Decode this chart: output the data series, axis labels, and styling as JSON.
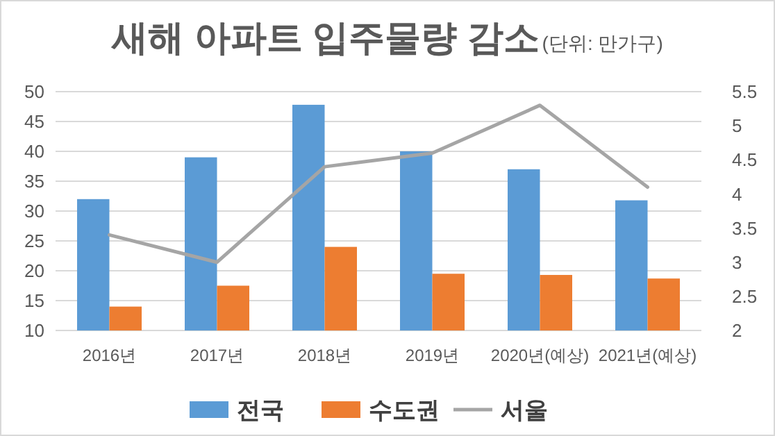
{
  "chart_data": {
    "type": "bar",
    "title": "새해 아파트 입주물량 감소",
    "subtitle": "(단위: 만가구)",
    "categories": [
      "2016년",
      "2017년",
      "2018년",
      "2019년",
      "2020년(예상)",
      "2021년(예상)"
    ],
    "series": [
      {
        "name": "전국",
        "color": "#5b9bd5",
        "values": [
          32,
          39,
          47.8,
          40,
          37,
          31.8
        ]
      },
      {
        "name": "수도권",
        "color": "#ed7d31",
        "values": [
          14,
          17.5,
          24,
          19.5,
          19.3,
          18.7
        ]
      },
      {
        "name": "서울",
        "type": "line",
        "axis": "y2",
        "color": "#a5a5a5",
        "values": [
          3.4,
          3.0,
          4.4,
          4.6,
          5.3,
          4.1
        ]
      }
    ],
    "ylim": [
      10,
      50
    ],
    "yticks": [
      10,
      15,
      20,
      25,
      30,
      35,
      40,
      45,
      50
    ],
    "y2lim": [
      2,
      5.5
    ],
    "y2ticks": [
      2,
      2.5,
      3,
      3.5,
      4,
      4.5,
      5,
      5.5
    ],
    "grid": "y",
    "legend": "bottom"
  }
}
